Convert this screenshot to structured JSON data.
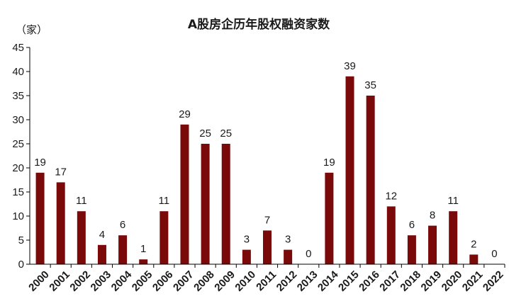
{
  "chart_data": {
    "type": "bar",
    "title": "A股房企历年股权融资家数",
    "unit_label": "（家）",
    "categories": [
      "2000",
      "2001",
      "2002",
      "2003",
      "2004",
      "2005",
      "2006",
      "2007",
      "2008",
      "2009",
      "2010",
      "2011",
      "2012",
      "2013",
      "2014",
      "2015",
      "2016",
      "2017",
      "2018",
      "2019",
      "2020",
      "2021",
      "2022"
    ],
    "values": [
      19,
      17,
      11,
      4,
      6,
      1,
      11,
      29,
      25,
      25,
      3,
      7,
      3,
      0,
      19,
      39,
      35,
      12,
      6,
      8,
      11,
      2,
      0
    ],
    "ylim": [
      0,
      45
    ],
    "yticks": [
      0,
      5,
      10,
      15,
      20,
      25,
      30,
      35,
      40,
      45
    ],
    "bar_color": "#7a0a0a",
    "grid": false,
    "legend": "none"
  }
}
